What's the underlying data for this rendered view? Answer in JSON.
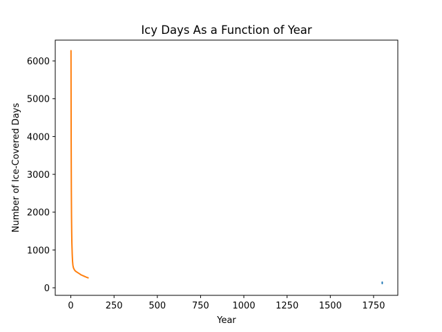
{
  "chart_data": {
    "type": "line",
    "title": "Icy Days As a Function of Year",
    "xlabel": "Year",
    "ylabel": "Number of Ice-Covered Days",
    "xlim": [
      -90,
      1890
    ],
    "ylim": [
      -200,
      6550
    ],
    "xticks": [
      0,
      250,
      500,
      750,
      1000,
      1250,
      1500,
      1750
    ],
    "yticks": [
      0,
      1000,
      2000,
      3000,
      4000,
      5000,
      6000
    ],
    "grid": false,
    "legend": "none",
    "series": [
      {
        "color": "#1f77b4",
        "x": [
          1800,
          1800,
          1800
        ],
        "y": [
          110,
          130,
          150
        ]
      },
      {
        "color": "#ff7f0e",
        "x": [
          1,
          2,
          3,
          4,
          5,
          6,
          8,
          10,
          12,
          15,
          20,
          25,
          30,
          40,
          50,
          60,
          70,
          80,
          90,
          100
        ],
        "y": [
          6270,
          3900,
          2600,
          1900,
          1500,
          1200,
          900,
          700,
          600,
          530,
          480,
          450,
          430,
          400,
          370,
          340,
          320,
          300,
          280,
          262
        ]
      }
    ]
  }
}
